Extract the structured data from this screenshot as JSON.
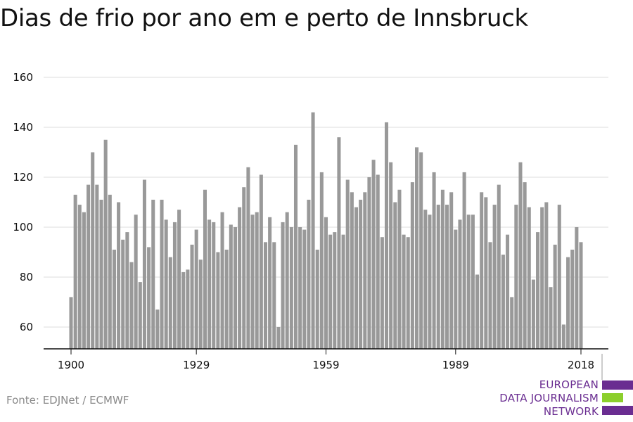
{
  "title": "Dias de frio por ano em e perto de Innsbruck",
  "source": "Fonte: EDJNet / ECMWF",
  "logo": {
    "lines": [
      "EUROPEAN",
      "DATA JOURNALISM",
      "NETWORK"
    ],
    "colors": {
      "text": "#6a2d91",
      "purple": "#6a2d91",
      "green": "#8ccf2c"
    }
  },
  "chart_data": {
    "type": "bar",
    "title": "Dias de frio por ano em e perto de Innsbruck",
    "xlabel": "",
    "ylabel": "",
    "x_tick_labels": [
      "1900",
      "1929",
      "1959",
      "1989",
      "2018"
    ],
    "y_tick_labels": [
      "60",
      "80",
      "100",
      "120",
      "140",
      "160"
    ],
    "ylim": [
      52,
      164
    ],
    "grid": true,
    "bar_color": "#999999",
    "x": [
      1900,
      1901,
      1902,
      1903,
      1904,
      1905,
      1906,
      1907,
      1908,
      1909,
      1910,
      1911,
      1912,
      1913,
      1914,
      1915,
      1916,
      1917,
      1918,
      1919,
      1920,
      1921,
      1922,
      1923,
      1924,
      1925,
      1926,
      1927,
      1928,
      1929,
      1930,
      1931,
      1932,
      1933,
      1934,
      1935,
      1936,
      1937,
      1938,
      1939,
      1940,
      1941,
      1942,
      1943,
      1944,
      1945,
      1946,
      1947,
      1948,
      1949,
      1950,
      1951,
      1952,
      1953,
      1954,
      1955,
      1956,
      1957,
      1958,
      1959,
      1960,
      1961,
      1962,
      1963,
      1964,
      1965,
      1966,
      1967,
      1968,
      1969,
      1970,
      1971,
      1972,
      1973,
      1974,
      1975,
      1976,
      1977,
      1978,
      1979,
      1980,
      1981,
      1982,
      1983,
      1984,
      1985,
      1986,
      1987,
      1988,
      1989,
      1990,
      1991,
      1992,
      1993,
      1994,
      1995,
      1996,
      1997,
      1998,
      1999,
      2000,
      2001,
      2002,
      2003,
      2004,
      2005,
      2006,
      2007,
      2008,
      2009,
      2010,
      2011,
      2012,
      2013,
      2014,
      2015,
      2016,
      2017,
      2018
    ],
    "values": [
      72,
      113,
      109,
      106,
      117,
      130,
      117,
      111,
      135,
      113,
      91,
      110,
      95,
      98,
      86,
      105,
      78,
      119,
      92,
      111,
      67,
      111,
      103,
      88,
      102,
      107,
      82,
      83,
      93,
      99,
      87,
      115,
      103,
      102,
      90,
      106,
      91,
      101,
      100,
      108,
      116,
      124,
      105,
      106,
      121,
      94,
      104,
      94,
      60,
      102,
      106,
      100,
      133,
      100,
      99,
      111,
      146,
      91,
      122,
      104,
      97,
      98,
      136,
      97,
      119,
      114,
      108,
      111,
      114,
      120,
      127,
      121,
      96,
      142,
      126,
      110,
      115,
      97,
      96,
      118,
      132,
      130,
      107,
      105,
      122,
      109,
      115,
      109,
      114,
      99,
      103,
      122,
      105,
      105,
      81,
      114,
      112,
      94,
      109,
      117,
      89,
      97,
      72,
      109,
      126,
      118,
      108,
      79,
      98,
      108,
      110,
      76,
      93,
      109,
      61,
      88,
      91,
      100,
      94
    ]
  }
}
